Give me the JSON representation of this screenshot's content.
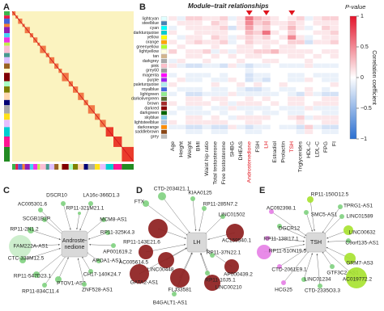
{
  "panel_a": {
    "label": "A"
  },
  "panel_b": {
    "label": "B",
    "title": "Module–trait relationships",
    "pvalue_label": "P-value",
    "colorbar_title": "Correlation coefficient",
    "clim": [
      -1,
      1
    ],
    "colorbar_ticks": [
      1,
      0.5,
      0,
      {
        "value": -0.5,
        "label": "−0.5"
      },
      {
        "value": -1,
        "label": "−1"
      }
    ],
    "rows": [
      {
        "label": "lightcyan",
        "color": "#e0ffff"
      },
      {
        "label": "steelblue",
        "color": "#4682b4"
      },
      {
        "label": "cyan",
        "color": "#00ffff"
      },
      {
        "label": "darkturquoise",
        "color": "#00ced1"
      },
      {
        "label": "yellow",
        "color": "#ffff00"
      },
      {
        "label": "orange",
        "color": "#ffa500"
      },
      {
        "label": "greenyellow",
        "color": "#adff2f"
      },
      {
        "label": "lightyellow",
        "color": "#ffffe0"
      },
      {
        "label": "tan",
        "color": "#d2b48c"
      },
      {
        "label": "darkgrey",
        "color": "#a9a9a9"
      },
      {
        "label": "pink",
        "color": "#ffc0cb"
      },
      {
        "label": "grey60",
        "color": "#999999"
      },
      {
        "label": "magenta",
        "color": "#ff00ff"
      },
      {
        "label": "purple",
        "color": "#a020f0"
      },
      {
        "label": "paleturquoise",
        "color": "#afeeee"
      },
      {
        "label": "royalblue",
        "color": "#4169e1"
      },
      {
        "label": "lightgreen",
        "color": "#90ee90"
      },
      {
        "label": "darkolivegreen",
        "color": "#556b2f"
      },
      {
        "label": "brown",
        "color": "#a52a2a"
      },
      {
        "label": "darkred",
        "color": "#8b0000"
      },
      {
        "label": "darkgreen",
        "color": "#006400"
      },
      {
        "label": "skyblue",
        "color": "#87ceeb"
      },
      {
        "label": "lightsteelblue",
        "color": "#b0c4de"
      },
      {
        "label": "darkorange",
        "color": "#ff8c00"
      },
      {
        "label": "saddlebrown",
        "color": "#8b4513"
      },
      {
        "label": "grey",
        "color": "#bebebe"
      }
    ],
    "columns": [
      {
        "label": "Age",
        "highlight": false
      },
      {
        "label": "Height",
        "highlight": false
      },
      {
        "label": "Weight",
        "highlight": false
      },
      {
        "label": "BMI",
        "highlight": false
      },
      {
        "label": "Waist hip ratio",
        "highlight": false
      },
      {
        "label": "Total testosterone",
        "highlight": false
      },
      {
        "label": "Free testosterone",
        "highlight": false
      },
      {
        "label": "SHBG",
        "highlight": false
      },
      {
        "label": "DHEAS",
        "highlight": false
      },
      {
        "label": "Androstenedione",
        "highlight": true
      },
      {
        "label": "FSH",
        "highlight": false
      },
      {
        "label": "LH",
        "highlight": true
      },
      {
        "label": "Estradiol",
        "highlight": false
      },
      {
        "label": "Prolactin",
        "highlight": false
      },
      {
        "label": "TSH",
        "highlight": true
      },
      {
        "label": "Triglycerides",
        "highlight": false
      },
      {
        "label": "HDL-C",
        "highlight": false
      },
      {
        "label": "LDL-C",
        "highlight": false
      },
      {
        "label": "FPG",
        "highlight": false
      },
      {
        "label": "FI",
        "highlight": false
      }
    ],
    "values": [
      [
        0.1,
        -0.1,
        0.2,
        0.2,
        0.1,
        0.1,
        0.2,
        -0.1,
        0.1,
        0.6,
        0.3,
        0.2,
        0.1,
        0,
        0.1,
        0.2,
        -0.1,
        0.1,
        0.2,
        0.2
      ],
      [
        0,
        0.1,
        0.1,
        0.1,
        0,
        0.2,
        0.1,
        0,
        0.1,
        0.5,
        0.2,
        0.3,
        0.1,
        0.1,
        0.2,
        0.1,
        0,
        0.1,
        0.1,
        0.1
      ],
      [
        -0.1,
        0,
        0.1,
        0.1,
        0.1,
        0.1,
        0.2,
        -0.2,
        0.1,
        0.4,
        0.1,
        0.2,
        0,
        0.1,
        0.3,
        0.1,
        -0.1,
        0,
        0.2,
        0.1
      ],
      [
        0.1,
        0,
        0,
        0.1,
        0.1,
        0.1,
        0.1,
        0,
        0,
        0.3,
        0.2,
        0.6,
        0.1,
        0,
        0.2,
        0,
        0,
        0.1,
        0.1,
        0.2
      ],
      [
        0,
        -0.1,
        0.1,
        0.1,
        0,
        0.2,
        0.1,
        -0.1,
        0.1,
        0.2,
        0.1,
        0.2,
        0,
        0.1,
        0.5,
        0.1,
        -0.1,
        0,
        0.1,
        0.1
      ],
      [
        0.1,
        0,
        0.1,
        0.2,
        0.1,
        0.1,
        0.2,
        -0.1,
        0,
        0.2,
        0.1,
        0.1,
        0.1,
        0,
        0.2,
        0.2,
        -0.2,
        0.1,
        0.1,
        0.2
      ],
      [
        0,
        0.1,
        0,
        0,
        0,
        0.1,
        0,
        0,
        0.1,
        0.1,
        0,
        0.1,
        0,
        0.1,
        0.1,
        0,
        0,
        0,
        0,
        0
      ],
      [
        0.2,
        0,
        0.1,
        0.1,
        0.2,
        -0.1,
        0.1,
        -0.1,
        0.1,
        0.1,
        0.2,
        0.2,
        0.3,
        0.1,
        0.1,
        0.1,
        0.1,
        0,
        0.1,
        0.1
      ],
      [
        0,
        0,
        0.1,
        0.1,
        0,
        0.1,
        0,
        0.1,
        0,
        0.1,
        0.1,
        0,
        0,
        0,
        0.1,
        0.1,
        0,
        0.1,
        0,
        0.1
      ],
      [
        -0.1,
        0.1,
        0,
        0,
        0.1,
        0,
        0,
        0,
        0.1,
        0,
        0,
        0.1,
        0.1,
        0,
        0,
        0,
        0.1,
        0,
        0,
        0
      ],
      [
        0.1,
        -0.1,
        -0.2,
        -0.2,
        -0.1,
        -0.1,
        -0.2,
        0.1,
        -0.1,
        -0.2,
        -0.1,
        -0.1,
        0,
        -0.1,
        -0.1,
        -0.1,
        0.1,
        -0.1,
        -0.1,
        -0.1
      ],
      [
        0,
        0,
        0,
        0,
        0,
        0,
        0,
        0,
        0,
        -0.1,
        0,
        0,
        0,
        0,
        0,
        0,
        0,
        0,
        0,
        0
      ],
      [
        -0.1,
        0,
        -0.1,
        -0.1,
        -0.1,
        0,
        -0.1,
        0,
        0,
        -0.2,
        -0.1,
        -0.1,
        0,
        0,
        -0.1,
        -0.1,
        0,
        -0.1,
        -0.1,
        -0.1
      ],
      [
        0,
        0.1,
        -0.1,
        -0.1,
        0,
        -0.1,
        -0.1,
        0.1,
        0,
        -0.2,
        -0.1,
        -0.2,
        0,
        0,
        -0.1,
        -0.1,
        0.1,
        0,
        -0.1,
        -0.1
      ],
      [
        0.1,
        0,
        0,
        0,
        0,
        0.1,
        0,
        0,
        0.1,
        0,
        0.1,
        0,
        0,
        0.1,
        0,
        0,
        0,
        0,
        0,
        0.1
      ],
      [
        0,
        -0.1,
        -0.1,
        -0.1,
        0,
        -0.1,
        -0.1,
        0,
        -0.1,
        -0.2,
        -0.2,
        -0.1,
        0,
        -0.1,
        -0.1,
        0,
        0.1,
        0,
        -0.1,
        0
      ],
      [
        -0.1,
        0,
        -0.2,
        -0.2,
        -0.1,
        -0.1,
        -0.1,
        0.1,
        -0.1,
        -0.1,
        -0.1,
        -0.1,
        -0.1,
        0,
        -0.1,
        -0.2,
        0.1,
        -0.1,
        -0.2,
        -0.2
      ],
      [
        0,
        0,
        0.1,
        0.1,
        0,
        0.1,
        0.1,
        0,
        0,
        0.1,
        0,
        0.1,
        0,
        0,
        0.1,
        0.1,
        0,
        0,
        0.1,
        0.1
      ],
      [
        0.1,
        0,
        0.1,
        0.1,
        0.1,
        0,
        0.1,
        -0.1,
        0.1,
        0.1,
        0.1,
        0,
        0.1,
        0,
        0.1,
        0.1,
        0,
        0.1,
        0.1,
        0.1
      ],
      [
        0,
        -0.1,
        -0.1,
        -0.1,
        0,
        -0.1,
        -0.1,
        0.1,
        -0.1,
        -0.1,
        -0.1,
        -0.1,
        0,
        -0.1,
        -0.1,
        -0.1,
        0.1,
        -0.1,
        -0.1,
        -0.1
      ],
      [
        -0.1,
        0,
        -0.1,
        -0.1,
        -0.1,
        0,
        -0.1,
        0,
        0,
        -0.1,
        0,
        -0.1,
        -0.1,
        0,
        -0.1,
        -0.1,
        0,
        0,
        -0.1,
        -0.1
      ],
      [
        0,
        0,
        0.1,
        0.1,
        0,
        0.1,
        0,
        -0.1,
        0.1,
        0.1,
        0.1,
        0.1,
        0,
        0,
        0.1,
        0.2,
        -0.1,
        0.1,
        0.1,
        0.1
      ],
      [
        0.1,
        0,
        0.1,
        0.1,
        0.1,
        0.1,
        0.1,
        0,
        0,
        0.1,
        0.1,
        0,
        0,
        0,
        0,
        0.1,
        0,
        0,
        0.1,
        0.1
      ],
      [
        -0.1,
        -0.1,
        -0.2,
        -0.2,
        -0.1,
        -0.2,
        -0.2,
        0.1,
        -0.1,
        -0.2,
        -0.1,
        -0.1,
        0,
        -0.1,
        -0.1,
        -0.2,
        0.2,
        -0.1,
        -0.2,
        -0.2
      ],
      [
        0,
        0,
        -0.1,
        -0.1,
        0,
        -0.1,
        -0.1,
        0,
        0,
        -0.1,
        -0.1,
        0,
        0,
        0,
        0,
        -0.1,
        0.1,
        0,
        -0.1,
        -0.1
      ],
      [
        0,
        0,
        0,
        0,
        0,
        0,
        0,
        0,
        0,
        0,
        0,
        0,
        0,
        0,
        0,
        0,
        0,
        0,
        0,
        0
      ]
    ]
  },
  "panel_c": {
    "label": "C",
    "center": [
      "Androste-",
      "nedione"
    ],
    "nodes": [
      "DSCR10",
      "LA16c-366D1.3",
      "AC005301.6",
      "RP11-321M21.1",
      "SCGB1B2P",
      "MCM8-AS1",
      "RP11-2N1.2",
      "RP11-325K4.3",
      "FAM222A-AS1",
      "AP001619.2",
      "CTC-338M12.5",
      "APOA1-AS1",
      "RP11-547D23.1",
      "CH17-140K24.7",
      "PTOV1-AS2",
      "RP11-834C11.4",
      "ZNF528-AS1"
    ]
  },
  "panel_d": {
    "label": "D",
    "center": [
      "LH"
    ],
    "nodes": [
      "CTD-2034I21.1",
      "KIAA0125",
      "FTX",
      "RP11-285N7.2",
      "LINC01502",
      "RP11-143E21.6",
      "AC159540.1",
      "RP11-37N22.1",
      "AC005614.5",
      "LINC00448",
      "GATA2-AS1",
      "FLJ33581",
      "LINC00210",
      "AP000439.2",
      "B4GALT1-AS1",
      "RP11-10J5.1"
    ]
  },
  "panel_e": {
    "label": "E",
    "center": [
      "TSH"
    ],
    "nodes": [
      "RP11-150O12.5",
      "AC092398.1",
      "SMC5-AS1",
      "TPRG1-AS1",
      "LINC01589",
      "DGCR12",
      "LINC00632",
      "RP11-138I17.1",
      "C9orf135-AS1",
      "RP11-510N19.5",
      "GRM7-AS3",
      "CTD-2061E9.1",
      "GTF3C2-AS1",
      "LINC01234",
      "AC019772.2",
      "HCG25",
      "CTD-2335O3.3"
    ]
  }
}
